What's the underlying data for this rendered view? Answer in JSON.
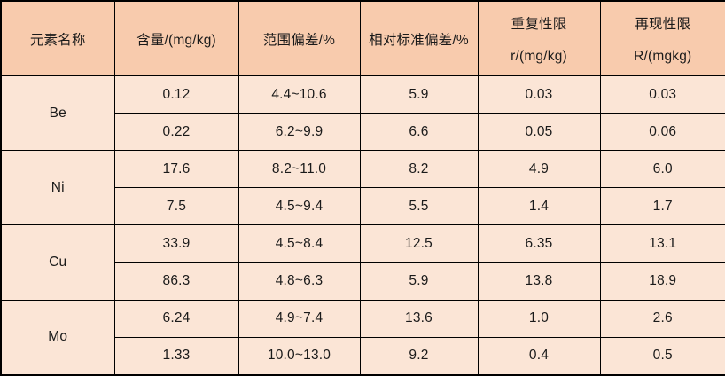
{
  "table": {
    "headers": {
      "element": "元素名称",
      "content": "含量/(mg/kg)",
      "range_deviation": "范围偏差/%",
      "relative_std_deviation": "相对标准偏差/%",
      "repeatability_line1": "重复性限",
      "repeatability_line2": "r/(mg/kg)",
      "reproducibility_line1": "再现性限",
      "reproducibility_line2": "R/(mgkg)"
    },
    "groups": [
      {
        "element": "Be",
        "rows": [
          [
            "0.12",
            "4.4~10.6",
            "5.9",
            "0.03",
            "0.03"
          ],
          [
            "0.22",
            "6.2~9.9",
            "6.6",
            "0.05",
            "0.06"
          ]
        ]
      },
      {
        "element": "Ni",
        "rows": [
          [
            "17.6",
            "8.2~11.0",
            "8.2",
            "4.9",
            "6.0"
          ],
          [
            "7.5",
            "4.5~9.4",
            "5.5",
            "1.4",
            "1.7"
          ]
        ]
      },
      {
        "element": "Cu",
        "rows": [
          [
            "33.9",
            "4.5~8.4",
            "12.5",
            "6.35",
            "13.1"
          ],
          [
            "86.3",
            "4.8~6.3",
            "5.9",
            "13.8",
            "18.9"
          ]
        ]
      },
      {
        "element": "Mo",
        "rows": [
          [
            "6.24",
            "4.9~7.4",
            "13.6",
            "1.0",
            "2.6"
          ],
          [
            "1.33",
            "10.0~13.0",
            "9.2",
            "0.4",
            "0.5"
          ]
        ]
      }
    ],
    "colors": {
      "header_bg": "#F8CBAD",
      "body_bg": "#FBE5D6",
      "border": "#000000",
      "text": "#1a1a1a"
    }
  }
}
